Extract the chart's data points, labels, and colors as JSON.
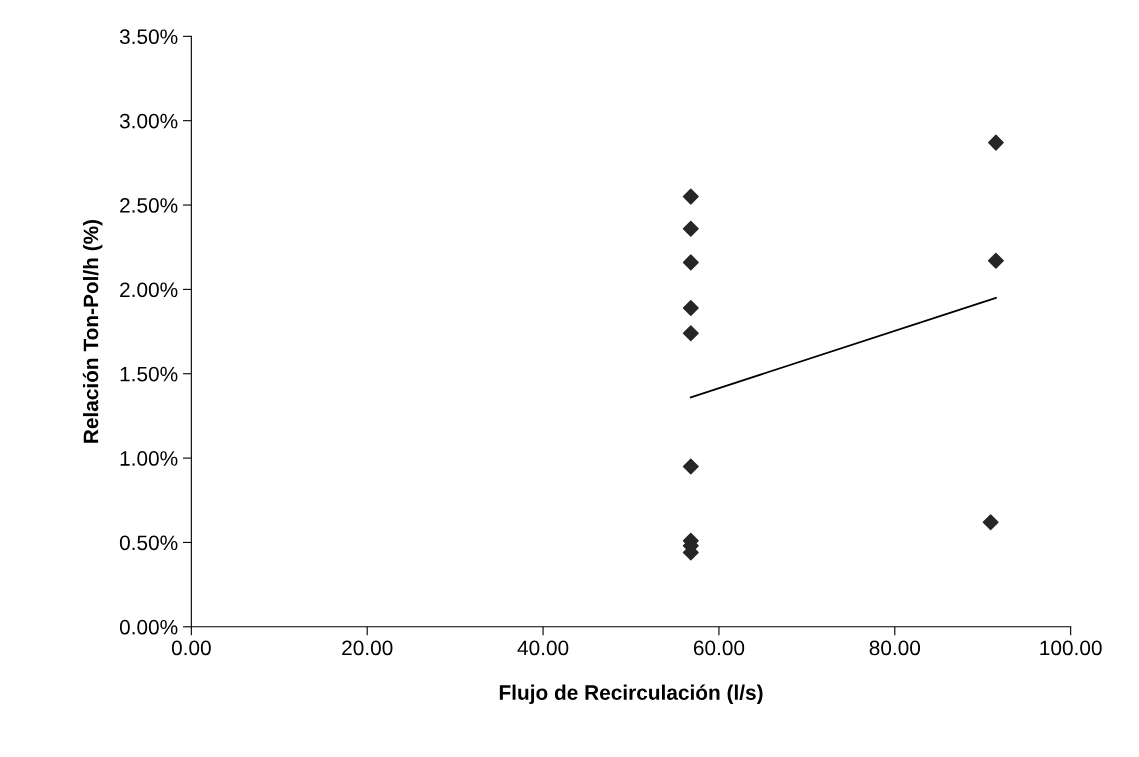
{
  "chart_data": {
    "type": "scatter",
    "xlabel": "Flujo de Recirculación (l/s)",
    "ylabel": "Relación Ton-Pol/h (%)",
    "xlim": [
      0,
      100
    ],
    "xticks": [
      {
        "value": 0,
        "label": "0.00"
      },
      {
        "value": 20,
        "label": "20.00"
      },
      {
        "value": 40,
        "label": "40.00"
      },
      {
        "value": 60,
        "label": "60.00"
      },
      {
        "value": 80,
        "label": "80.00"
      },
      {
        "value": 100,
        "label": "100.00"
      }
    ],
    "ylim": [
      0,
      3.5
    ],
    "yticks": [
      {
        "value": 0,
        "label": "0.00%"
      },
      {
        "value": 0.5,
        "label": "0.50%"
      },
      {
        "value": 1,
        "label": "1.00%"
      },
      {
        "value": 1.5,
        "label": "1.50%"
      },
      {
        "value": 2,
        "label": "2.00%"
      },
      {
        "value": 2.5,
        "label": "2.50%"
      },
      {
        "value": 3,
        "label": "3.00%"
      },
      {
        "value": 3.5,
        "label": "3.50%"
      }
    ],
    "grid": false,
    "legend": false,
    "series": [
      {
        "marker": "diamond",
        "color": "#262626",
        "x": [
          56.8,
          56.8,
          56.8,
          56.8,
          56.8,
          56.8,
          56.8,
          56.8,
          56.8,
          91.5,
          91.5,
          90.9
        ],
        "values": [
          2.55,
          2.36,
          2.16,
          1.89,
          1.74,
          0.95,
          0.51,
          0.48,
          0.44,
          2.87,
          2.17,
          0.62
        ]
      },
      {
        "type": "line",
        "marker": "none",
        "color": "#000000",
        "x": [
          56.8,
          91.5
        ],
        "values": [
          1.36,
          1.95
        ]
      }
    ]
  }
}
